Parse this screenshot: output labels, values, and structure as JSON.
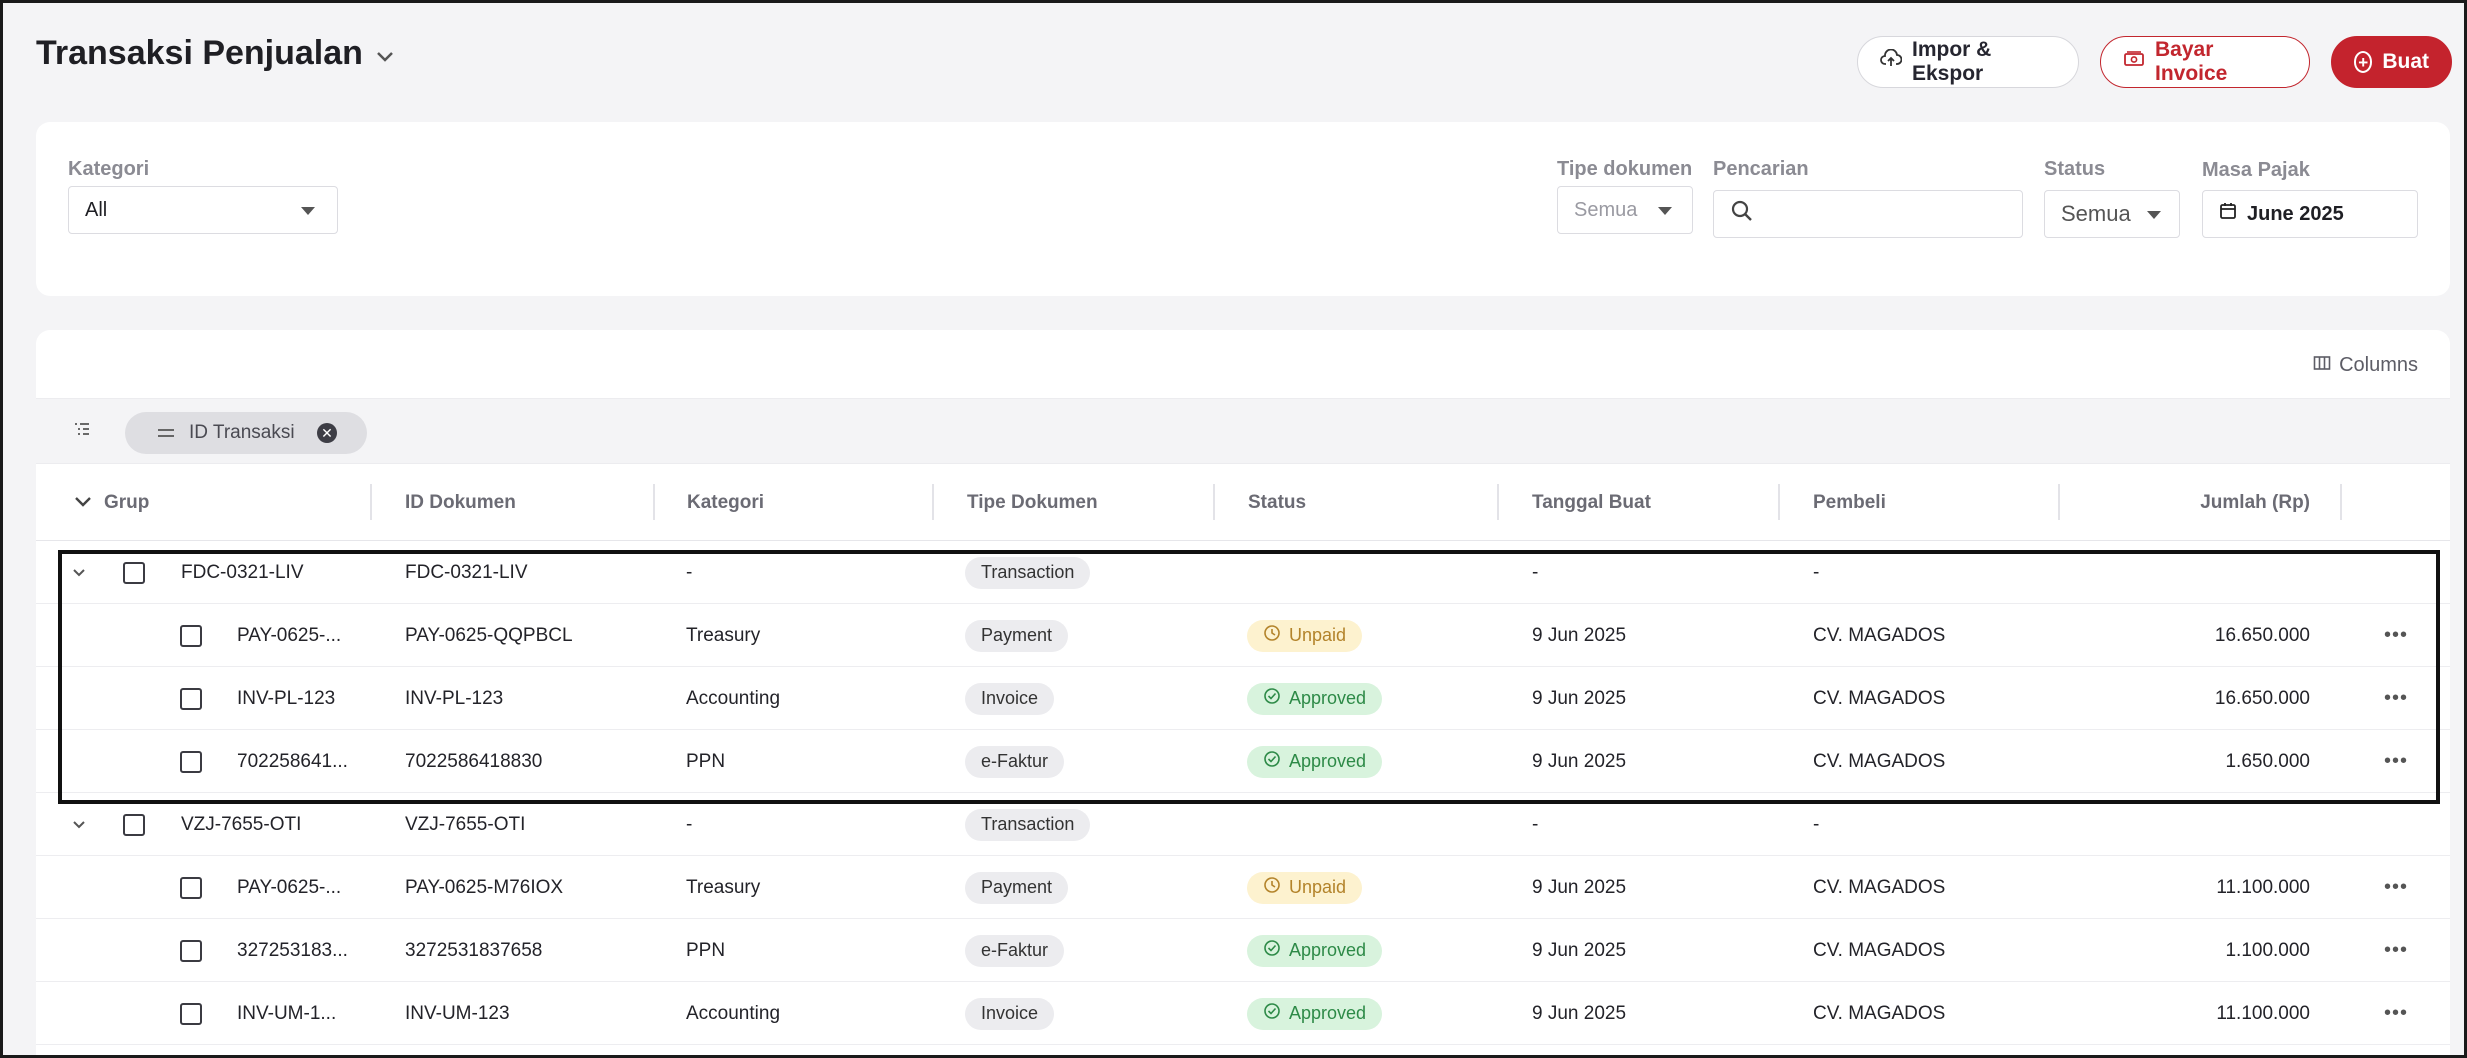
{
  "header": {
    "title": "Transaksi Penjualan",
    "import_label": "Impor & Ekspor",
    "pay_label": "Bayar Invoice",
    "create_label": "Buat"
  },
  "filters": {
    "kategori_label": "Kategori",
    "kategori_value": "All",
    "tipe_label": "Tipe dokumen",
    "tipe_value": "Semua",
    "search_label": "Pencarian",
    "search_value": "",
    "status_label": "Status",
    "status_value": "Semua",
    "masa_label": "Masa Pajak",
    "masa_value": "June 2025"
  },
  "table": {
    "columns_label": "Columns",
    "group_chip": "ID Transaksi",
    "headers": {
      "grup": "Grup",
      "id": "ID Dokumen",
      "kategori": "Kategori",
      "tipe": "Tipe Dokumen",
      "status": "Status",
      "tanggal": "Tanggal Buat",
      "pembeli": "Pembeli",
      "jumlah": "Jumlah (Rp)"
    },
    "rows": [
      {
        "grup": "FDC-0321-LIV",
        "id": "FDC-0321-LIV",
        "kategori": "-",
        "tipe": "Transaction",
        "status": "",
        "tanggal": "-",
        "pembeli": "-",
        "jumlah": ""
      },
      {
        "grup": "PAY-0625-...",
        "id": "PAY-0625-QQPBCL",
        "kategori": "Treasury",
        "tipe": "Payment",
        "status": "Unpaid",
        "tanggal": "9 Jun 2025",
        "pembeli": "CV. MAGADOS",
        "jumlah": "16.650.000"
      },
      {
        "grup": "INV-PL-123",
        "id": "INV-PL-123",
        "kategori": "Accounting",
        "tipe": "Invoice",
        "status": "Approved",
        "tanggal": "9 Jun 2025",
        "pembeli": "CV. MAGADOS",
        "jumlah": "16.650.000"
      },
      {
        "grup": "702258641...",
        "id": "7022586418830",
        "kategori": "PPN",
        "tipe": "e-Faktur",
        "status": "Approved",
        "tanggal": "9 Jun 2025",
        "pembeli": "CV. MAGADOS",
        "jumlah": "1.650.000"
      },
      {
        "grup": "VZJ-7655-OTI",
        "id": "VZJ-7655-OTI",
        "kategori": "-",
        "tipe": "Transaction",
        "status": "",
        "tanggal": "-",
        "pembeli": "-",
        "jumlah": ""
      },
      {
        "grup": "PAY-0625-...",
        "id": "PAY-0625-M76IOX",
        "kategori": "Treasury",
        "tipe": "Payment",
        "status": "Unpaid",
        "tanggal": "9 Jun 2025",
        "pembeli": "CV. MAGADOS",
        "jumlah": "11.100.000"
      },
      {
        "grup": "327253183...",
        "id": "3272531837658",
        "kategori": "PPN",
        "tipe": "e-Faktur",
        "status": "Approved",
        "tanggal": "9 Jun 2025",
        "pembeli": "CV. MAGADOS",
        "jumlah": "1.100.000"
      },
      {
        "grup": "INV-UM-1...",
        "id": "INV-UM-123",
        "kategori": "Accounting",
        "tipe": "Invoice",
        "status": "Approved",
        "tanggal": "9 Jun 2025",
        "pembeli": "CV. MAGADOS",
        "jumlah": "11.100.000"
      }
    ]
  },
  "colors": {
    "brand_red": "#c4232d",
    "unpaid_bg": "#fdf2cf",
    "approved_bg": "#d8f3dd"
  }
}
